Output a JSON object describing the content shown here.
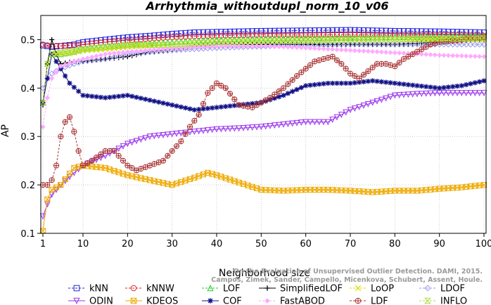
{
  "chart_data": {
    "type": "line",
    "title": "Arrhythmia_withoutdupl_norm_10_v06",
    "xlabel": "Neighborhood size",
    "ylabel": "AP",
    "xlim": [
      1,
      100
    ],
    "ylim": [
      0.1,
      0.55
    ],
    "xticks": [
      1,
      10,
      20,
      30,
      40,
      50,
      60,
      70,
      80,
      90,
      100
    ],
    "yticks": [
      0.1,
      0.2,
      0.3,
      0.4,
      0.5
    ],
    "grid": true,
    "legend_position": "bottom",
    "watermark": "Campos, Zimek, Sander, Campello, Micenkova, Schubert, Assent, Houle. On the Evaluation of Unsupervised Outlier Detection. DAMI, 2015.",
    "series": [
      {
        "name": "kNN",
        "color": "#2222dd",
        "marker": "square",
        "line": "dashed",
        "points": [
          [
            1,
            0.488
          ],
          [
            3,
            0.485
          ],
          [
            5,
            0.487
          ],
          [
            8,
            0.49
          ],
          [
            10,
            0.495
          ],
          [
            15,
            0.5
          ],
          [
            20,
            0.505
          ],
          [
            25,
            0.508
          ],
          [
            30,
            0.512
          ],
          [
            35,
            0.515
          ],
          [
            40,
            0.516
          ],
          [
            50,
            0.518
          ],
          [
            60,
            0.519
          ],
          [
            70,
            0.52
          ],
          [
            80,
            0.518
          ],
          [
            90,
            0.517
          ],
          [
            100,
            0.515
          ]
        ]
      },
      {
        "name": "kNNW",
        "color": "#dd2222",
        "marker": "circle",
        "line": "dashed",
        "points": [
          [
            1,
            0.49
          ],
          [
            3,
            0.487
          ],
          [
            5,
            0.487
          ],
          [
            8,
            0.488
          ],
          [
            10,
            0.49
          ],
          [
            15,
            0.495
          ],
          [
            20,
            0.498
          ],
          [
            25,
            0.502
          ],
          [
            30,
            0.505
          ],
          [
            35,
            0.507
          ],
          [
            40,
            0.508
          ],
          [
            50,
            0.51
          ],
          [
            60,
            0.51
          ],
          [
            70,
            0.511
          ],
          [
            80,
            0.51
          ],
          [
            90,
            0.51
          ],
          [
            100,
            0.508
          ]
        ]
      },
      {
        "name": "LOF",
        "color": "#22cc22",
        "marker": "triangle-up",
        "line": "dashed",
        "points": [
          [
            1,
            0.37
          ],
          [
            2,
            0.45
          ],
          [
            3,
            0.47
          ],
          [
            5,
            0.47
          ],
          [
            8,
            0.475
          ],
          [
            10,
            0.48
          ],
          [
            15,
            0.485
          ],
          [
            20,
            0.49
          ],
          [
            25,
            0.492
          ],
          [
            30,
            0.495
          ],
          [
            40,
            0.5
          ],
          [
            50,
            0.502
          ],
          [
            60,
            0.503
          ],
          [
            70,
            0.504
          ],
          [
            80,
            0.505
          ],
          [
            90,
            0.506
          ],
          [
            100,
            0.507
          ]
        ]
      },
      {
        "name": "SimplifiedLOF",
        "color": "#000000",
        "marker": "plus",
        "line": "solid",
        "points": [
          [
            1,
            0.365
          ],
          [
            2,
            0.45
          ],
          [
            3,
            0.5
          ],
          [
            4,
            0.47
          ],
          [
            5,
            0.45
          ],
          [
            8,
            0.455
          ],
          [
            10,
            0.455
          ],
          [
            15,
            0.46
          ],
          [
            20,
            0.465
          ],
          [
            25,
            0.475
          ],
          [
            30,
            0.48
          ],
          [
            35,
            0.485
          ],
          [
            40,
            0.49
          ],
          [
            50,
            0.49
          ],
          [
            60,
            0.49
          ],
          [
            70,
            0.49
          ],
          [
            80,
            0.49
          ],
          [
            90,
            0.495
          ],
          [
            100,
            0.5
          ]
        ]
      },
      {
        "name": "LoOP",
        "color": "#dddd00",
        "marker": "x",
        "line": "dashed",
        "points": [
          [
            1,
            0.37
          ],
          [
            2,
            0.45
          ],
          [
            3,
            0.47
          ],
          [
            5,
            0.47
          ],
          [
            8,
            0.473
          ],
          [
            10,
            0.477
          ],
          [
            15,
            0.48
          ],
          [
            20,
            0.485
          ],
          [
            30,
            0.49
          ],
          [
            40,
            0.495
          ],
          [
            50,
            0.497
          ],
          [
            60,
            0.498
          ],
          [
            70,
            0.5
          ],
          [
            80,
            0.5
          ],
          [
            90,
            0.5
          ],
          [
            100,
            0.5
          ]
        ]
      },
      {
        "name": "LDOF",
        "color": "#9999ee",
        "marker": "diamond",
        "line": "dashed",
        "points": [
          [
            1,
            0.4
          ],
          [
            2,
            0.42
          ],
          [
            3,
            0.43
          ],
          [
            5,
            0.44
          ],
          [
            8,
            0.45
          ],
          [
            10,
            0.455
          ],
          [
            15,
            0.46
          ],
          [
            20,
            0.47
          ],
          [
            30,
            0.478
          ],
          [
            40,
            0.483
          ],
          [
            50,
            0.486
          ],
          [
            60,
            0.488
          ],
          [
            70,
            0.49
          ],
          [
            80,
            0.49
          ],
          [
            90,
            0.49
          ],
          [
            100,
            0.49
          ]
        ]
      },
      {
        "name": "ODIN",
        "color": "#9933ee",
        "marker": "triangle-down",
        "line": "solid",
        "points": [
          [
            1,
            0.135
          ],
          [
            2,
            0.16
          ],
          [
            3,
            0.18
          ],
          [
            5,
            0.2
          ],
          [
            8,
            0.225
          ],
          [
            10,
            0.24
          ],
          [
            15,
            0.26
          ],
          [
            20,
            0.285
          ],
          [
            25,
            0.3
          ],
          [
            30,
            0.305
          ],
          [
            35,
            0.31
          ],
          [
            40,
            0.315
          ],
          [
            45,
            0.317
          ],
          [
            50,
            0.32
          ],
          [
            55,
            0.325
          ],
          [
            60,
            0.33
          ],
          [
            65,
            0.33
          ],
          [
            70,
            0.355
          ],
          [
            75,
            0.37
          ],
          [
            80,
            0.385
          ],
          [
            85,
            0.388
          ],
          [
            90,
            0.39
          ],
          [
            95,
            0.39
          ],
          [
            100,
            0.39
          ]
        ]
      },
      {
        "name": "KDEOS",
        "color": "#eeaa00",
        "marker": "square-x",
        "line": "solid",
        "points": [
          [
            1,
            0.105
          ],
          [
            2,
            0.17
          ],
          [
            3,
            0.19
          ],
          [
            5,
            0.2
          ],
          [
            8,
            0.235
          ],
          [
            10,
            0.24
          ],
          [
            15,
            0.235
          ],
          [
            20,
            0.22
          ],
          [
            25,
            0.21
          ],
          [
            30,
            0.2
          ],
          [
            35,
            0.215
          ],
          [
            38,
            0.225
          ],
          [
            40,
            0.22
          ],
          [
            45,
            0.205
          ],
          [
            50,
            0.19
          ],
          [
            55,
            0.188
          ],
          [
            60,
            0.19
          ],
          [
            65,
            0.19
          ],
          [
            70,
            0.188
          ],
          [
            75,
            0.185
          ],
          [
            80,
            0.188
          ],
          [
            85,
            0.188
          ],
          [
            90,
            0.192
          ],
          [
            95,
            0.195
          ],
          [
            100,
            0.2
          ]
        ]
      },
      {
        "name": "COF",
        "color": "#111188",
        "marker": "star",
        "line": "solid",
        "points": [
          [
            1,
            0.37
          ],
          [
            3,
            0.47
          ],
          [
            5,
            0.44
          ],
          [
            7,
            0.41
          ],
          [
            10,
            0.385
          ],
          [
            15,
            0.38
          ],
          [
            20,
            0.385
          ],
          [
            25,
            0.375
          ],
          [
            30,
            0.365
          ],
          [
            35,
            0.355
          ],
          [
            40,
            0.36
          ],
          [
            45,
            0.365
          ],
          [
            50,
            0.37
          ],
          [
            55,
            0.385
          ],
          [
            60,
            0.405
          ],
          [
            65,
            0.41
          ],
          [
            70,
            0.41
          ],
          [
            75,
            0.415
          ],
          [
            80,
            0.41
          ],
          [
            85,
            0.405
          ],
          [
            90,
            0.4
          ],
          [
            95,
            0.405
          ],
          [
            100,
            0.415
          ]
        ]
      },
      {
        "name": "FastABOD",
        "color": "#ffaaff",
        "marker": "diamond-small",
        "line": "dashed",
        "points": [
          [
            1,
            0.32
          ],
          [
            2,
            0.38
          ],
          [
            3,
            0.42
          ],
          [
            5,
            0.445
          ],
          [
            8,
            0.455
          ],
          [
            10,
            0.46
          ],
          [
            15,
            0.47
          ],
          [
            20,
            0.475
          ],
          [
            30,
            0.482
          ],
          [
            40,
            0.487
          ],
          [
            50,
            0.487
          ],
          [
            60,
            0.483
          ],
          [
            70,
            0.478
          ],
          [
            80,
            0.473
          ],
          [
            90,
            0.468
          ],
          [
            100,
            0.465
          ]
        ]
      },
      {
        "name": "LDF",
        "color": "#aa3333",
        "marker": "circle-plus",
        "line": "dashed",
        "points": [
          [
            1,
            0.2
          ],
          [
            2,
            0.2
          ],
          [
            3,
            0.21
          ],
          [
            4,
            0.24
          ],
          [
            5,
            0.3
          ],
          [
            6,
            0.33
          ],
          [
            7,
            0.34
          ],
          [
            8,
            0.31
          ],
          [
            9,
            0.27
          ],
          [
            10,
            0.24
          ],
          [
            12,
            0.25
          ],
          [
            15,
            0.27
          ],
          [
            17,
            0.27
          ],
          [
            20,
            0.24
          ],
          [
            22,
            0.23
          ],
          [
            25,
            0.24
          ],
          [
            28,
            0.25
          ],
          [
            30,
            0.27
          ],
          [
            32,
            0.29
          ],
          [
            34,
            0.32
          ],
          [
            36,
            0.345
          ],
          [
            38,
            0.39
          ],
          [
            40,
            0.41
          ],
          [
            42,
            0.4
          ],
          [
            45,
            0.365
          ],
          [
            48,
            0.36
          ],
          [
            50,
            0.37
          ],
          [
            52,
            0.38
          ],
          [
            55,
            0.4
          ],
          [
            58,
            0.425
          ],
          [
            60,
            0.44
          ],
          [
            62,
            0.455
          ],
          [
            64,
            0.46
          ],
          [
            66,
            0.465
          ],
          [
            68,
            0.45
          ],
          [
            70,
            0.43
          ],
          [
            72,
            0.42
          ],
          [
            74,
            0.435
          ],
          [
            76,
            0.45
          ],
          [
            78,
            0.45
          ],
          [
            80,
            0.445
          ],
          [
            82,
            0.46
          ],
          [
            84,
            0.47
          ],
          [
            86,
            0.48
          ],
          [
            88,
            0.49
          ],
          [
            90,
            0.495
          ],
          [
            95,
            0.5
          ],
          [
            100,
            0.505
          ]
        ]
      },
      {
        "name": "INFLO",
        "color": "#aadd44",
        "marker": "hourglass",
        "line": "dashed",
        "points": [
          [
            1,
            0.37
          ],
          [
            2,
            0.45
          ],
          [
            3,
            0.47
          ],
          [
            5,
            0.473
          ],
          [
            8,
            0.477
          ],
          [
            10,
            0.48
          ],
          [
            15,
            0.485
          ],
          [
            20,
            0.488
          ],
          [
            30,
            0.49
          ],
          [
            40,
            0.495
          ],
          [
            50,
            0.497
          ],
          [
            60,
            0.498
          ],
          [
            70,
            0.5
          ],
          [
            80,
            0.5
          ],
          [
            90,
            0.502
          ],
          [
            100,
            0.503
          ]
        ]
      }
    ]
  }
}
